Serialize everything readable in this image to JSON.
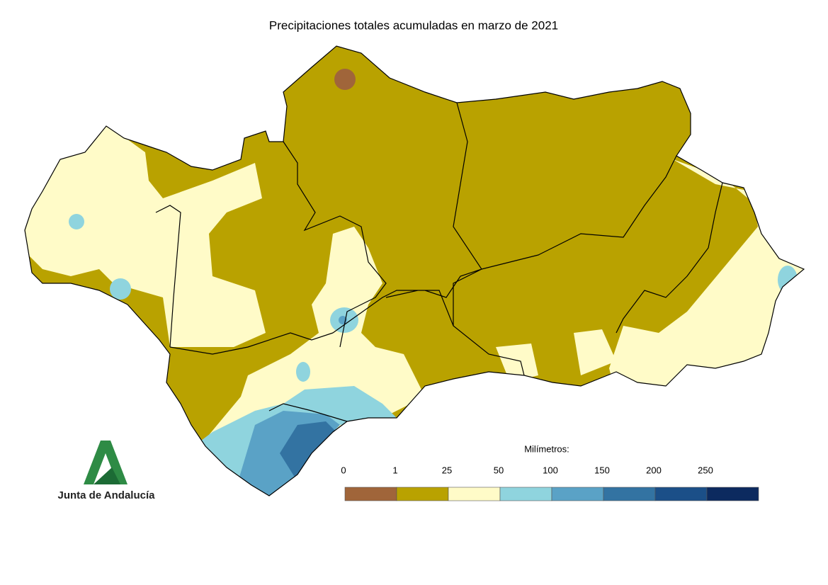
{
  "title": "Precipitaciones totales acumuladas en marzo de 2021",
  "legend": {
    "label": "Milímetros:",
    "ticks": [
      0,
      1,
      25,
      50,
      100,
      150,
      200,
      250
    ],
    "colors": [
      "#a0653a",
      "#b9a200",
      "#fffbc8",
      "#8fd4de",
      "#5aa2c6",
      "#3373a2",
      "#1b4f88",
      "#0c2a5f"
    ]
  },
  "logo": {
    "text": "Junta de Andalucía"
  }
}
